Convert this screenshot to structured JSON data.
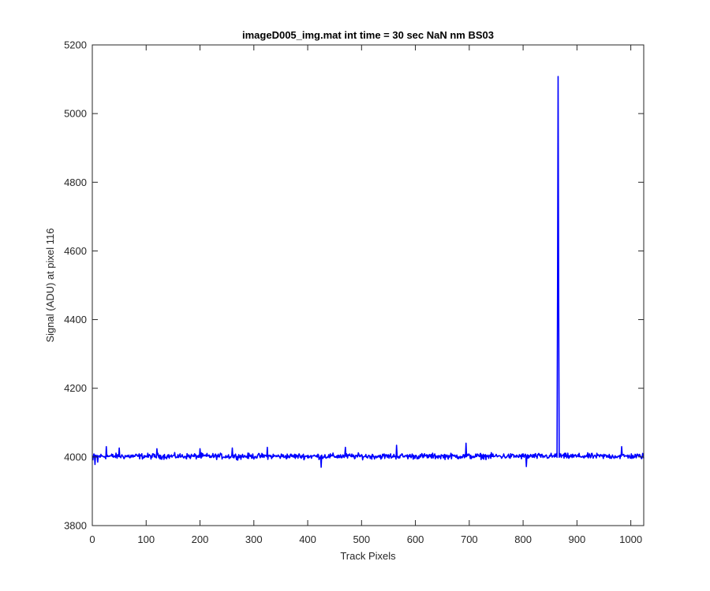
{
  "chart_data": {
    "type": "line",
    "title": "imageD005_img.mat int time = 30 sec  NaN nm BS03",
    "xlabel": "Track Pixels",
    "ylabel": "Signal (ADU) at pixel 116",
    "xlim": [
      0,
      1024
    ],
    "ylim": [
      3800,
      5200
    ],
    "xticks": [
      0,
      100,
      200,
      300,
      400,
      500,
      600,
      700,
      800,
      900,
      1000
    ],
    "xtick_labels": [
      "0",
      "100",
      "200",
      "300",
      "400",
      "500",
      "600",
      "700",
      "800",
      "900",
      "1000"
    ],
    "yticks": [
      3800,
      4000,
      4200,
      4400,
      4600,
      4800,
      5000,
      5200
    ],
    "ytick_labels": [
      "3800",
      "4000",
      "4200",
      "4400",
      "4600",
      "4800",
      "5000",
      "5200"
    ],
    "grid": false,
    "series": [
      {
        "color": "#0000ff",
        "x_start": 1,
        "x_step": 1,
        "baseline": 4000,
        "noise_amplitude": 12,
        "sample_points": [
          [
            1,
            3990
          ],
          [
            5,
            3978
          ],
          [
            10,
            3985
          ],
          [
            26,
            4030
          ],
          [
            50,
            4026
          ],
          [
            120,
            4024
          ],
          [
            200,
            4024
          ],
          [
            260,
            4026
          ],
          [
            325,
            4028
          ],
          [
            425,
            3970
          ],
          [
            470,
            4028
          ],
          [
            565,
            4034
          ],
          [
            694,
            4040
          ],
          [
            806,
            3972
          ],
          [
            862,
            4010
          ],
          [
            864,
            4500
          ],
          [
            865,
            5108
          ],
          [
            866,
            4500
          ],
          [
            868,
            4010
          ],
          [
            983,
            4030
          ],
          [
            1024,
            3996
          ]
        ]
      }
    ]
  }
}
